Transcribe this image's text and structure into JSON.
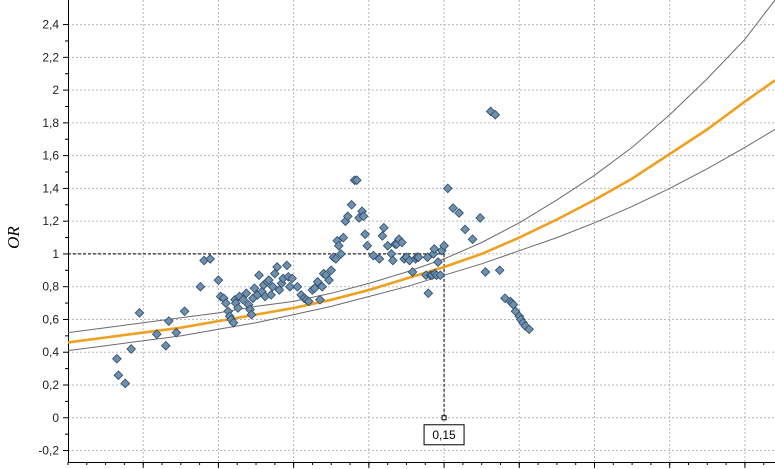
{
  "chart_data": {
    "type": "scatter",
    "title": "",
    "xlabel": "",
    "ylabel": "OR",
    "xlim": [
      -0.35,
      0.59
    ],
    "ylim": [
      -0.27,
      2.55
    ],
    "y_ticks": [
      -0.2,
      0,
      0.2,
      0.4,
      0.6,
      0.8,
      1,
      1.2,
      1.4,
      1.6,
      1.8,
      2,
      2.2,
      2.4
    ],
    "y_tick_labels": [
      "-0,2",
      "0",
      "0,2",
      "0,4",
      "0,6",
      "0,8",
      "1",
      "1,2",
      "1,4",
      "1,6",
      "1,8",
      "2",
      "2,2",
      "2,4"
    ],
    "x_gridlines": [
      -0.25,
      -0.15,
      -0.05,
      0.05,
      0.15,
      0.25,
      0.35,
      0.45,
      0.55
    ],
    "grid": true,
    "colors": {
      "points": "#6e8fae",
      "point_edge": "#2c4a66",
      "fit": "#f0a020",
      "ci": "#6a6a6a",
      "grid": "#b8b8b8"
    },
    "series": [
      {
        "type": "scatter",
        "x": [
          -0.285,
          -0.283,
          -0.274,
          -0.266,
          -0.255,
          -0.232,
          -0.22,
          -0.216,
          -0.206,
          -0.195,
          -0.174,
          -0.169,
          -0.161,
          -0.15,
          -0.147,
          -0.143,
          -0.14,
          -0.137,
          -0.135,
          -0.133,
          -0.13,
          -0.128,
          -0.127,
          -0.124,
          -0.122,
          -0.117,
          -0.113,
          -0.11,
          -0.108,
          -0.106,
          -0.104,
          -0.102,
          -0.098,
          -0.096,
          -0.092,
          -0.09,
          -0.088,
          -0.085,
          -0.083,
          -0.08,
          -0.078,
          -0.075,
          -0.072,
          -0.069,
          -0.066,
          -0.064,
          -0.059,
          -0.057,
          -0.055,
          -0.052,
          -0.045,
          -0.04,
          -0.036,
          -0.033,
          -0.03,
          -0.025,
          -0.022,
          -0.018,
          -0.015,
          -0.012,
          -0.01,
          -0.007,
          -0.003,
          0.0,
          0.003,
          0.006,
          0.008,
          0.01,
          0.013,
          0.016,
          0.019,
          0.022,
          0.027,
          0.031,
          0.034,
          0.037,
          0.041,
          0.043,
          0.045,
          0.048,
          0.056,
          0.064,
          0.068,
          0.07,
          0.075,
          0.08,
          0.082,
          0.085,
          0.087,
          0.09,
          0.094,
          0.097,
          0.1,
          0.104,
          0.108,
          0.112,
          0.114,
          0.116,
          0.126,
          0.128,
          0.129,
          0.132,
          0.134,
          0.136,
          0.137,
          0.138,
          0.14,
          0.142,
          0.145,
          0.147,
          0.15,
          0.155,
          0.162,
          0.17,
          0.178,
          0.188,
          0.198,
          0.205,
          0.212,
          0.218,
          0.224,
          0.231,
          0.238,
          0.24,
          0.242,
          0.245,
          0.25,
          0.252,
          0.255,
          0.258,
          0.263
        ],
        "y": [
          0.36,
          0.26,
          0.21,
          0.42,
          0.64,
          0.51,
          0.44,
          0.59,
          0.52,
          0.65,
          0.8,
          0.96,
          0.97,
          0.84,
          0.74,
          0.73,
          0.7,
          0.65,
          0.62,
          0.6,
          0.58,
          0.72,
          0.7,
          0.67,
          0.74,
          0.72,
          0.76,
          0.69,
          0.66,
          0.63,
          0.73,
          0.79,
          0.75,
          0.87,
          0.77,
          0.81,
          0.74,
          0.83,
          0.84,
          0.75,
          0.8,
          0.88,
          0.92,
          0.78,
          0.82,
          0.85,
          0.93,
          0.86,
          0.8,
          0.85,
          0.8,
          0.75,
          0.73,
          0.72,
          0.71,
          0.78,
          0.79,
          0.83,
          0.72,
          0.8,
          0.88,
          0.87,
          0.84,
          0.9,
          0.98,
          0.97,
          1.08,
          1.05,
          1.0,
          1.1,
          1.2,
          1.23,
          1.3,
          1.45,
          1.45,
          1.22,
          1.26,
          1.23,
          1.12,
          1.05,
          0.99,
          0.97,
          1.11,
          1.16,
          1.05,
          1.0,
          0.96,
          1.06,
          1.06,
          1.09,
          1.07,
          0.97,
          0.98,
          0.96,
          0.89,
          0.97,
          0.98,
          0.98,
          0.87,
          0.98,
          0.76,
          0.87,
          0.87,
          1.0,
          1.03,
          0.88,
          0.87,
          0.95,
          0.87,
          1.02,
          1.05,
          1.4,
          1.28,
          1.25,
          1.15,
          1.09,
          1.22,
          0.89,
          1.87,
          1.85,
          0.9,
          0.73,
          0.71,
          0.7,
          0.69,
          0.65,
          0.62,
          0.6,
          0.58,
          0.56,
          0.54
        ],
        "x_note": "approximate positions read from the plot"
      },
      {
        "type": "line",
        "role": "fit",
        "x": [
          -0.35,
          -0.3,
          -0.25,
          -0.2,
          -0.15,
          -0.1,
          -0.05,
          0.0,
          0.05,
          0.1,
          0.15,
          0.2,
          0.25,
          0.3,
          0.35,
          0.4,
          0.45,
          0.5,
          0.55,
          0.59
        ],
        "y": [
          0.46,
          0.49,
          0.52,
          0.55,
          0.59,
          0.63,
          0.67,
          0.72,
          0.78,
          0.85,
          0.92,
          1.0,
          1.1,
          1.21,
          1.33,
          1.46,
          1.61,
          1.76,
          1.93,
          2.06
        ]
      },
      {
        "type": "line",
        "role": "ci-upper",
        "x": [
          -0.35,
          -0.3,
          -0.25,
          -0.2,
          -0.15,
          -0.1,
          -0.05,
          0.0,
          0.05,
          0.1,
          0.15,
          0.2,
          0.25,
          0.3,
          0.35,
          0.4,
          0.45,
          0.5,
          0.55,
          0.59
        ],
        "y": [
          0.52,
          0.55,
          0.58,
          0.61,
          0.64,
          0.68,
          0.71,
          0.76,
          0.82,
          0.89,
          0.97,
          1.07,
          1.19,
          1.33,
          1.48,
          1.65,
          1.85,
          2.07,
          2.31,
          2.55
        ]
      },
      {
        "type": "line",
        "role": "ci-lower",
        "x": [
          -0.35,
          -0.3,
          -0.25,
          -0.2,
          -0.15,
          -0.1,
          -0.05,
          0.0,
          0.05,
          0.1,
          0.15,
          0.2,
          0.25,
          0.3,
          0.35,
          0.4,
          0.45,
          0.5,
          0.55,
          0.59
        ],
        "y": [
          0.41,
          0.44,
          0.47,
          0.5,
          0.54,
          0.58,
          0.63,
          0.68,
          0.74,
          0.8,
          0.87,
          0.94,
          1.02,
          1.1,
          1.19,
          1.29,
          1.4,
          1.52,
          1.65,
          1.76
        ]
      }
    ],
    "reference": {
      "x": 0.15,
      "y": 1,
      "label": "0,15"
    }
  }
}
